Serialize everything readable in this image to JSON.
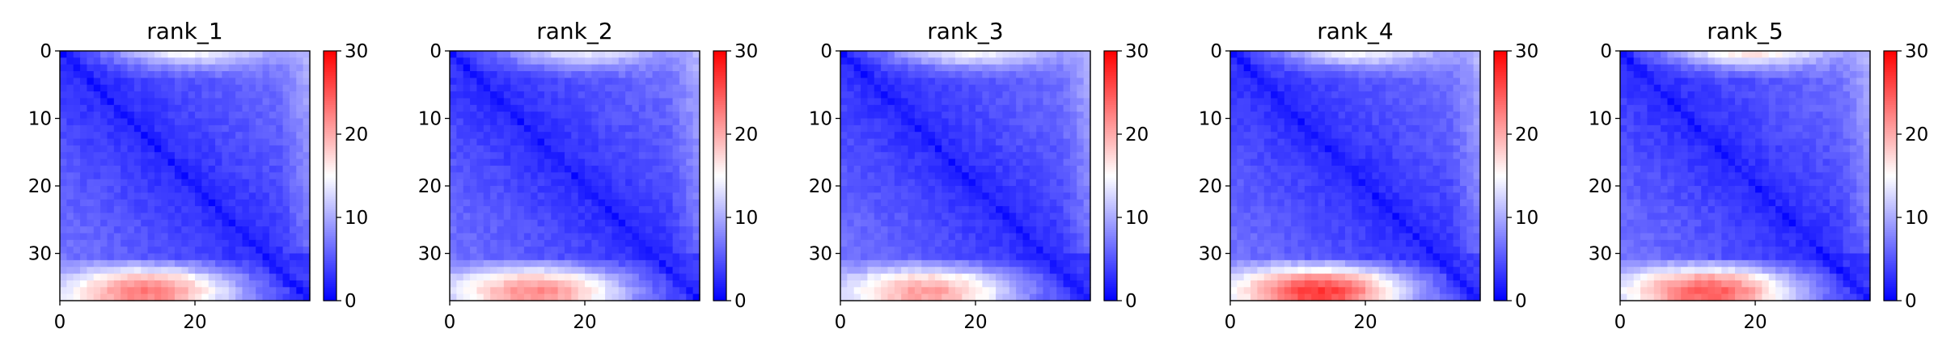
{
  "chart_data": [
    {
      "type": "heatmap",
      "title": "rank_1",
      "xlabel": "",
      "ylabel": "",
      "size": 37,
      "xticks": [
        0,
        20
      ],
      "yticks": [
        0,
        10,
        20,
        30
      ],
      "colorbar": {
        "cmap": "bwr",
        "vmin": 0,
        "vmax": 30,
        "ticks": [
          0,
          10,
          20,
          30
        ]
      },
      "grid": false,
      "matrix_description": "pairwise distance map of 37 residues: near-zero (blue) on diagonal, rising away from it; high values (red, up to ~26) in bottom rows (rows 33-36, columns 3-24) and moderate (~17) in top rows (rows 0-1)",
      "bottom_peak": 25,
      "top_peak": 17
    },
    {
      "type": "heatmap",
      "title": "rank_2",
      "xlabel": "",
      "ylabel": "",
      "size": 37,
      "xticks": [
        0,
        20
      ],
      "yticks": [
        0,
        10,
        20,
        30
      ],
      "colorbar": {
        "cmap": "bwr",
        "vmin": 0,
        "vmax": 30,
        "ticks": [
          0,
          10,
          20,
          30
        ]
      },
      "grid": false,
      "bottom_peak": 24,
      "top_peak": 16
    },
    {
      "type": "heatmap",
      "title": "rank_3",
      "xlabel": "",
      "ylabel": "",
      "size": 37,
      "xticks": [
        0,
        20
      ],
      "yticks": [
        0,
        10,
        20,
        30
      ],
      "colorbar": {
        "cmap": "bwr",
        "vmin": 0,
        "vmax": 30,
        "ticks": [
          0,
          10,
          20,
          30
        ]
      },
      "grid": false,
      "bottom_peak": 23,
      "top_peak": 17
    },
    {
      "type": "heatmap",
      "title": "rank_4",
      "xlabel": "",
      "ylabel": "",
      "size": 37,
      "xticks": [
        0,
        20
      ],
      "yticks": [
        0,
        10,
        20,
        30
      ],
      "colorbar": {
        "cmap": "bwr",
        "vmin": 0,
        "vmax": 30,
        "ticks": [
          0,
          10,
          20,
          30
        ]
      },
      "grid": false,
      "bottom_peak": 29,
      "top_peak": 17
    },
    {
      "type": "heatmap",
      "title": "rank_5",
      "xlabel": "",
      "ylabel": "",
      "size": 37,
      "xticks": [
        0,
        20
      ],
      "yticks": [
        0,
        10,
        20,
        30
      ],
      "colorbar": {
        "cmap": "bwr",
        "vmin": 0,
        "vmax": 30,
        "ticks": [
          0,
          10,
          20,
          30
        ]
      },
      "grid": false,
      "bottom_peak": 27,
      "top_peak": 19
    }
  ]
}
